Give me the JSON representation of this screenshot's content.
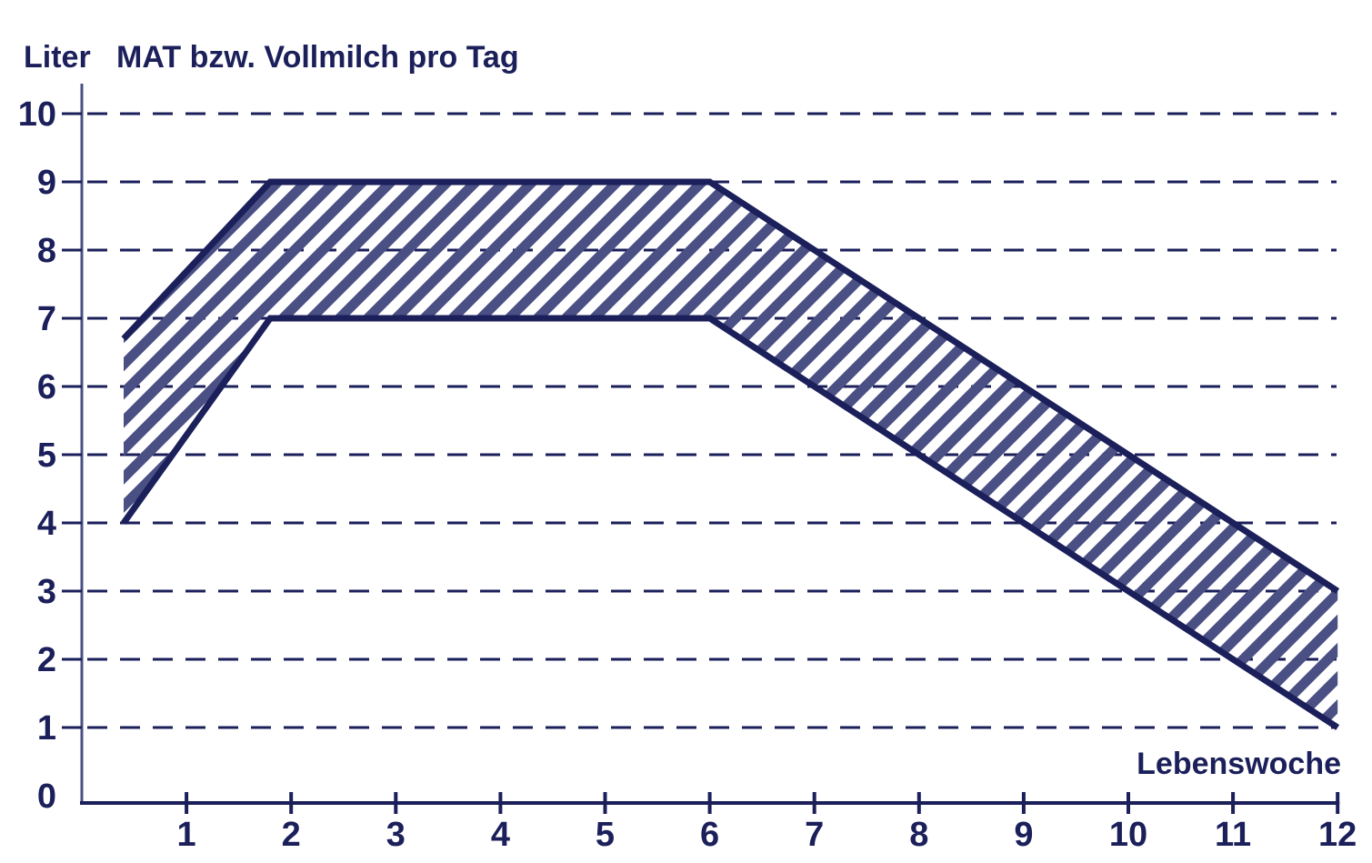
{
  "chart_data": {
    "type": "area",
    "title": "MAT bzw. Vollmilch pro Tag",
    "ylabel": "Liter",
    "xlabel": "Lebenswoche",
    "xlim": [
      0,
      12
    ],
    "ylim": [
      0,
      10
    ],
    "x_ticks": [
      "1",
      "2",
      "3",
      "4",
      "5",
      "6",
      "7",
      "8",
      "9",
      "10",
      "11",
      "12"
    ],
    "y_ticks": [
      "0",
      "1",
      "2",
      "3",
      "4",
      "5",
      "6",
      "7",
      "8",
      "9",
      "10"
    ],
    "grid": "horizontal dashed",
    "color": "#1b1f5a",
    "fill": "diagonal hatch",
    "series": [
      {
        "role": "upper",
        "x": [
          0.4,
          1.8,
          6.0,
          12.0
        ],
        "y": [
          6.7,
          9.0,
          9.0,
          3.0
        ]
      },
      {
        "role": "lower",
        "x": [
          0.4,
          1.8,
          6.0,
          12.0
        ],
        "y": [
          4.0,
          7.0,
          7.0,
          1.0
        ]
      }
    ]
  }
}
